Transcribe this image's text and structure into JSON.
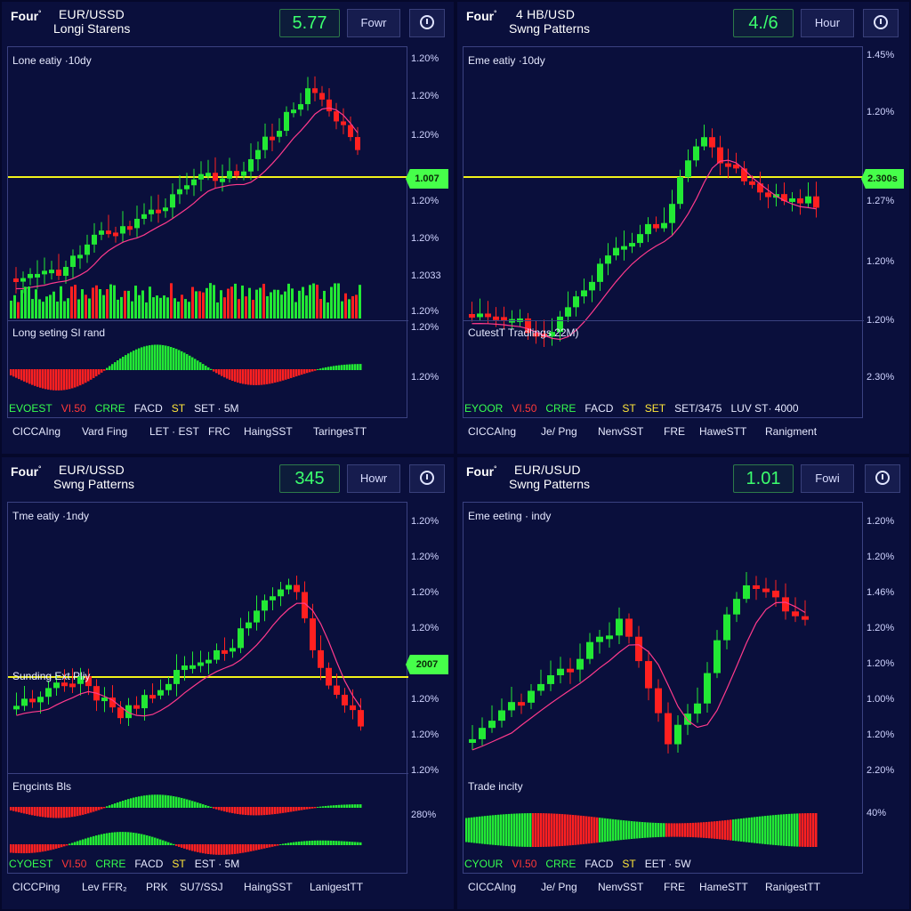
{
  "colors": {
    "bull": "#22e834",
    "bear": "#ff2020",
    "level": "#f2f21a",
    "ma": "#ff3a8c",
    "panel": "#0a0f3c",
    "grid": "#3a4180"
  },
  "panels": [
    {
      "brand": "Four",
      "brand_sup": "°",
      "pair": "EUR/USSD",
      "subtitle": "Longi Starens",
      "price": "5.77",
      "timeframe": "Fowr",
      "main_label": "Lone eatiy ·10dy",
      "osc_label": "Long seting SI rand",
      "osc_label2": "",
      "axis_labels": [
        "1.20%",
        "1.20%",
        "1.20%",
        "1.20%",
        "1.20%",
        "1.20%",
        "1.2033",
        "1.20%",
        "1.20%",
        "1.20%"
      ],
      "level_tag": "1.007",
      "legend": [
        {
          "text": "EVOEST",
          "tone": "green"
        },
        {
          "text": "VI.50",
          "tone": "red"
        },
        {
          "text": "CRRE",
          "tone": "green"
        },
        {
          "text": "FACD",
          "tone": "white"
        },
        {
          "text": "ST",
          "tone": "yellow"
        },
        {
          "text": "SET · 5M",
          "tone": "white"
        }
      ],
      "menu": [
        "CICCAIng",
        "Vard Fing",
        "LET · EST",
        "FRC",
        "HaingSST",
        "TaringesTT"
      ]
    },
    {
      "brand": "Four",
      "brand_sup": "°",
      "pair": "4 HB/USD",
      "subtitle": "Swng Patterns",
      "price": "4./6",
      "timeframe": "Hour",
      "main_label": "Eme eatiy ·10dy",
      "osc_label": "CutestT Tradlings 22M)",
      "osc_label2": "",
      "axis_labels": [
        "1.45%",
        "1.20%",
        "1.27%",
        "1.20%",
        "1.20%",
        "2.30%"
      ],
      "level_tag": "2.300s",
      "legend": [
        {
          "text": "EYOOR",
          "tone": "green"
        },
        {
          "text": "VI.50",
          "tone": "red"
        },
        {
          "text": "CRRE",
          "tone": "green"
        },
        {
          "text": "FACD",
          "tone": "white"
        },
        {
          "text": "ST",
          "tone": "yellow"
        },
        {
          "text": "SET",
          "tone": "yellow"
        },
        {
          "text": "SET/3475",
          "tone": "white"
        },
        {
          "text": "LUV ST· 4000",
          "tone": "white"
        }
      ],
      "menu": [
        "CICCAIng",
        "Je/ Png",
        "NenvSST",
        "FRE",
        "HaweSTT",
        "Ranigment"
      ]
    },
    {
      "brand": "Four",
      "brand_sup": "°",
      "pair": "EUR/USSD",
      "subtitle": "Swng Patterns",
      "price": "345",
      "timeframe": "Howr",
      "main_label": "Tme eatiy ·1ndy",
      "osc_label": "Sunding Ext Pliy",
      "osc_label2": "Engcints Bls",
      "axis_labels": [
        "1.20%",
        "1.20%",
        "1.20%",
        "1.20%",
        "1.20%",
        "1.20%",
        "1.20%",
        "280%"
      ],
      "level_tag": "2007",
      "legend": [
        {
          "text": "CYOEST",
          "tone": "green"
        },
        {
          "text": "VI.50",
          "tone": "red"
        },
        {
          "text": "CRRE",
          "tone": "green"
        },
        {
          "text": "FACD",
          "tone": "white"
        },
        {
          "text": "ST",
          "tone": "yellow"
        },
        {
          "text": "EST · 5M",
          "tone": "white"
        }
      ],
      "menu": [
        "CICCPing",
        "Lev FFR₂",
        "PRK",
        "SU7/SSJ",
        "HaingSST",
        "LanigestTT"
      ]
    },
    {
      "brand": "Four",
      "brand_sup": "°",
      "pair": "EUR/USUD",
      "subtitle": "Swng Patterns",
      "price": "1.01",
      "timeframe": "Fowi",
      "main_label": "Eme eeting · indy",
      "osc_label": "Trade incity",
      "osc_label2": "",
      "axis_labels": [
        "1.20%",
        "1.20%",
        "1.46%",
        "1.20%",
        "1.20%",
        "1.00%",
        "1.20%",
        "2.20%",
        "40%"
      ],
      "level_tag": "",
      "legend": [
        {
          "text": "CYOUR",
          "tone": "green"
        },
        {
          "text": "VI.50",
          "tone": "red"
        },
        {
          "text": "CRRE",
          "tone": "green"
        },
        {
          "text": "FACD",
          "tone": "white"
        },
        {
          "text": "ST",
          "tone": "yellow"
        },
        {
          "text": "EET · 5W",
          "tone": "white"
        }
      ],
      "menu": [
        "CICCAIng",
        "Je/ Png",
        "NenvSST",
        "FRE",
        "HameSTT",
        "RanigestTT"
      ]
    }
  ]
}
